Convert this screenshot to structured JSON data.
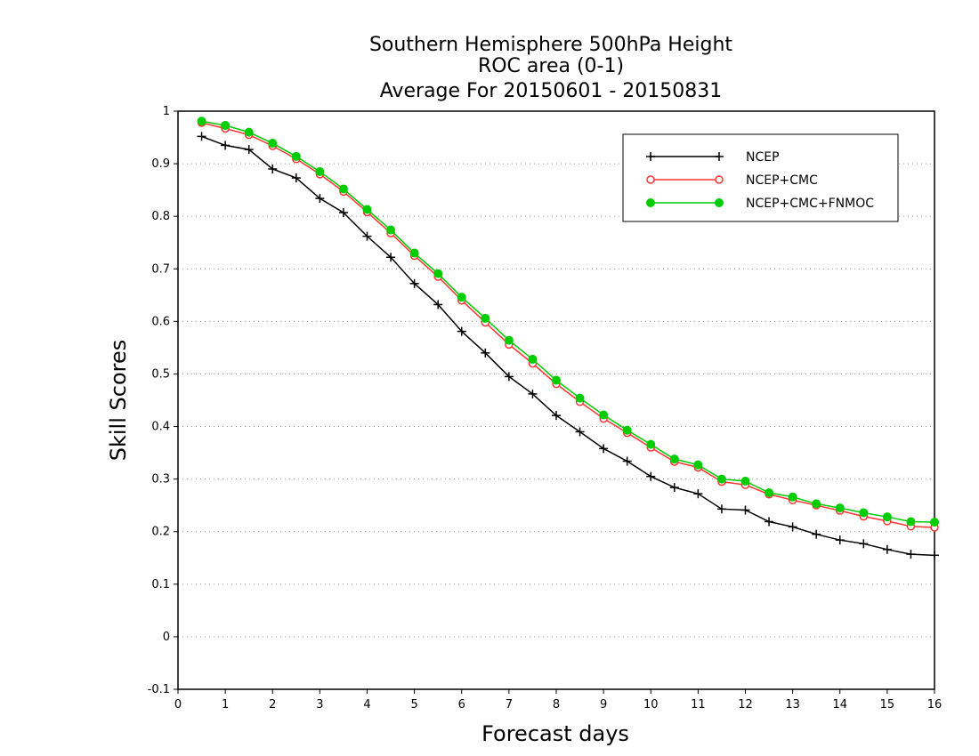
{
  "chart_data": {
    "type": "line",
    "title": [
      "Southern Hemisphere 500hPa Height",
      "ROC area (0-1)",
      "Average For 20150601 - 20150831"
    ],
    "xlabel": "Forecast days",
    "ylabel": "Skill Scores",
    "xlim": [
      0,
      16
    ],
    "ylim": [
      -0.1,
      1
    ],
    "xticks": [
      "0",
      "1",
      "2",
      "3",
      "4",
      "5",
      "6",
      "7",
      "8",
      "9",
      "10",
      "11",
      "12",
      "13",
      "14",
      "15",
      "16"
    ],
    "yticks": [
      "-0.1",
      "0",
      "0.1",
      "0.2",
      "0.3",
      "0.4",
      "0.5",
      "0.6",
      "0.7",
      "0.8",
      "0.9",
      "1"
    ],
    "grid": true,
    "legend_position": "top-right",
    "x": [
      0.5,
      1,
      1.5,
      2,
      2.5,
      3,
      3.5,
      4,
      4.5,
      5,
      5.5,
      6,
      6.5,
      7,
      7.5,
      8,
      8.5,
      9,
      9.5,
      10,
      10.5,
      11,
      11.5,
      12,
      12.5,
      13,
      13.5,
      14,
      14.5,
      15,
      15.5,
      16
    ],
    "series": [
      {
        "name": "NCEP",
        "color": "#000000",
        "marker": "plus",
        "values": [
          0.952,
          0.935,
          0.927,
          0.89,
          0.873,
          0.834,
          0.807,
          0.762,
          0.722,
          0.672,
          0.632,
          0.581,
          0.54,
          0.495,
          0.462,
          0.421,
          0.39,
          0.358,
          0.334,
          0.305,
          0.284,
          0.272,
          0.243,
          0.241,
          0.219,
          0.209,
          0.195,
          0.184,
          0.177,
          0.166,
          0.157,
          0.155
        ]
      },
      {
        "name": "NCEP+CMC",
        "color": "#ff3333",
        "marker": "open-circle",
        "values": [
          0.978,
          0.967,
          0.955,
          0.934,
          0.909,
          0.88,
          0.847,
          0.808,
          0.768,
          0.725,
          0.685,
          0.64,
          0.598,
          0.556,
          0.52,
          0.481,
          0.447,
          0.415,
          0.388,
          0.36,
          0.333,
          0.322,
          0.295,
          0.289,
          0.271,
          0.26,
          0.25,
          0.24,
          0.229,
          0.22,
          0.21,
          0.208
        ]
      },
      {
        "name": "NCEP+CMC+FNMOC",
        "color": "#00cc00",
        "marker": "filled-circle",
        "values": [
          0.981,
          0.973,
          0.96,
          0.939,
          0.914,
          0.885,
          0.852,
          0.813,
          0.774,
          0.73,
          0.691,
          0.646,
          0.606,
          0.564,
          0.528,
          0.488,
          0.454,
          0.422,
          0.393,
          0.366,
          0.338,
          0.327,
          0.3,
          0.296,
          0.274,
          0.266,
          0.253,
          0.245,
          0.236,
          0.228,
          0.219,
          0.218
        ]
      }
    ]
  }
}
